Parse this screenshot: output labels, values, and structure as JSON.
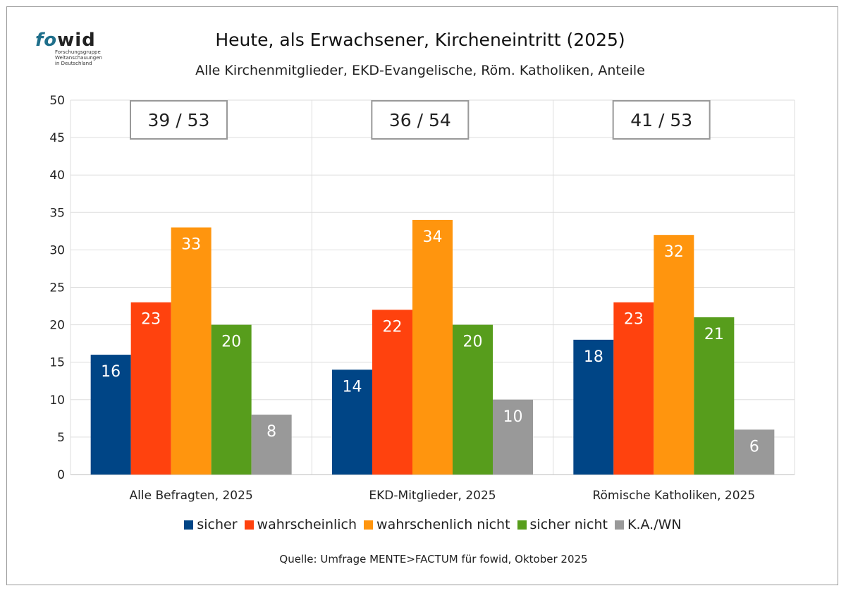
{
  "logo": {
    "brand_fo": "fo",
    "brand_wid": "wid",
    "lines": [
      "Forschungsgruppe",
      "Weltanschauungen",
      "in Deutschland"
    ]
  },
  "chart_data": {
    "type": "bar",
    "title": "Heute, als Erwachsener, Kircheneintritt (2025)",
    "subtitle": "Alle Kirchenmitglieder, EKD-Evangelische, Röm. Katholiken, Anteile",
    "categories": [
      "Alle Befragten, 2025",
      "EKD-Mitglieder, 2025",
      "Römische Katholiken, 2025"
    ],
    "series": [
      {
        "name": "sicher",
        "color": "#004586",
        "values": [
          16,
          14,
          18
        ]
      },
      {
        "name": "wahrscheinlich",
        "color": "#ff420e",
        "values": [
          23,
          22,
          23
        ]
      },
      {
        "name": "wahrschenlich nicht",
        "color": "#ff950e",
        "values": [
          33,
          34,
          32
        ]
      },
      {
        "name": "sicher nicht",
        "color": "#579d1c",
        "values": [
          20,
          20,
          21
        ]
      },
      {
        "name": "K.A./WN",
        "color": "#999999",
        "values": [
          8,
          10,
          6
        ]
      }
    ],
    "annotations": [
      "39 / 53",
      "36 / 54",
      "41 / 53"
    ],
    "ylim": [
      0,
      50
    ],
    "yticks": [
      0,
      5,
      10,
      15,
      20,
      25,
      30,
      35,
      40,
      45,
      50
    ],
    "grid": true,
    "legend": "bottom",
    "source": "Quelle: Umfrage MENTE>FACTUM für fowid, Oktober 2025"
  }
}
